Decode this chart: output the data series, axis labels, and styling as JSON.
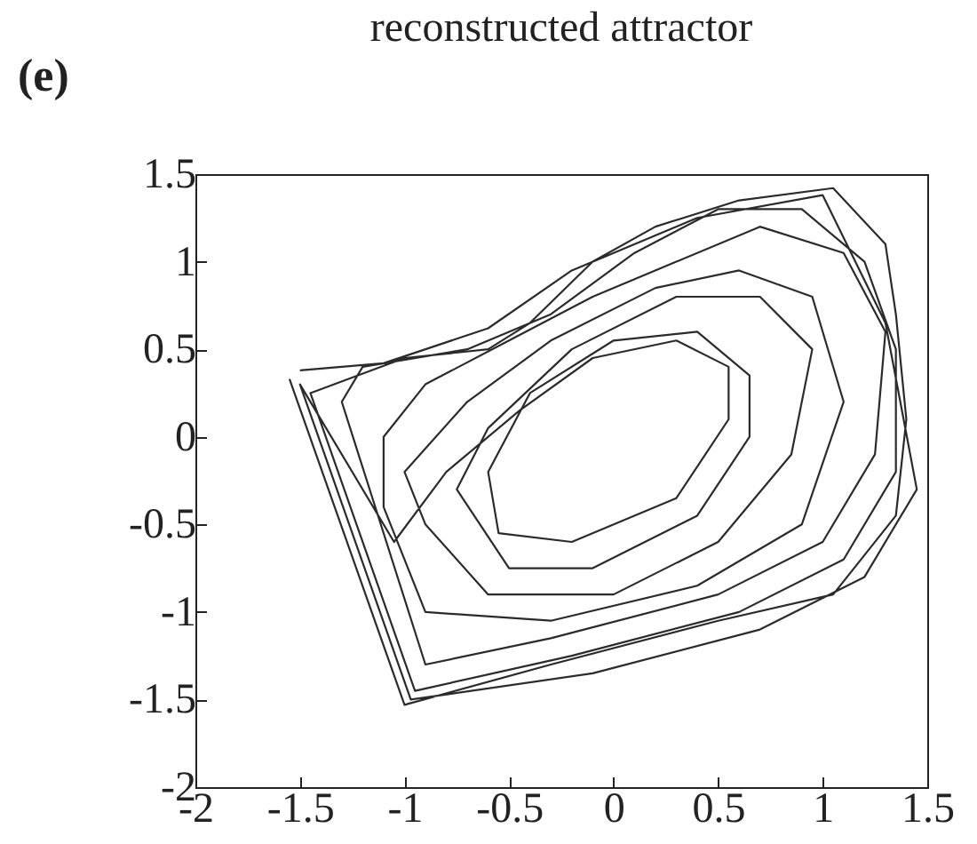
{
  "chart_data": {
    "type": "line",
    "title": "reconstructed attractor",
    "annotations": [
      "(e)"
    ],
    "xlim": [
      -2,
      1.5
    ],
    "ylim": [
      -2,
      1.5
    ],
    "xticks": [
      -2,
      -1.5,
      -1,
      -0.5,
      0,
      0.5,
      1,
      1.5
    ],
    "yticks": [
      -2,
      -1.5,
      -1,
      -0.5,
      0,
      0.5,
      1,
      1.5
    ],
    "series": [
      {
        "color": "#2b2b2b",
        "x": [
          -1.55,
          -1.0,
          -0.3,
          0.5,
          1.05,
          1.35,
          1.4,
          1.35,
          1.3,
          1.05,
          0.6,
          0.2,
          -0.1,
          -0.4,
          -0.6,
          -1.0,
          -1.45,
          -0.95,
          -0.2,
          0.6,
          1.1,
          1.35,
          1.35,
          1.2,
          0.9,
          0.5,
          0.1,
          -0.3,
          -0.7,
          -1.2,
          -1.3,
          -0.9,
          -0.3,
          0.5,
          1.0,
          1.25,
          1.3,
          1.1,
          0.7,
          0.3,
          -0.1,
          -0.5,
          -0.9,
          -1.1,
          -1.1,
          -0.9,
          -0.3,
          0.4,
          0.9,
          1.1,
          0.95,
          0.6,
          0.2,
          -0.3,
          -0.7,
          -1.0,
          -0.9,
          -0.6,
          0.0,
          0.5,
          0.85,
          0.95,
          0.7,
          0.3,
          -0.2,
          -0.6,
          -0.75,
          -0.5,
          -0.1,
          0.4,
          0.65,
          0.65,
          0.4,
          0.0,
          -0.4,
          -0.6,
          -0.55,
          -0.2,
          0.3,
          0.55,
          0.55,
          0.3,
          -0.1,
          -0.45,
          -0.8,
          -1.05,
          -1.5,
          -0.97,
          -0.1,
          0.7,
          1.2,
          1.45,
          1.3,
          1.0,
          0.4,
          -0.2,
          -0.6,
          -1.1,
          -1.5
        ],
        "values": [
          0.33,
          -1.53,
          -1.3,
          -1.05,
          -0.9,
          -0.45,
          0.1,
          0.7,
          1.1,
          1.42,
          1.35,
          1.2,
          1.0,
          0.65,
          0.5,
          0.45,
          0.25,
          -1.45,
          -1.25,
          -1.0,
          -0.7,
          -0.2,
          0.5,
          1.0,
          1.3,
          1.3,
          1.05,
          0.7,
          0.5,
          0.4,
          0.2,
          -1.3,
          -1.15,
          -0.9,
          -0.6,
          -0.1,
          0.6,
          1.05,
          1.2,
          1.0,
          0.8,
          0.55,
          0.3,
          0.0,
          -0.4,
          -1.0,
          -1.05,
          -0.85,
          -0.5,
          0.2,
          0.8,
          0.95,
          0.85,
          0.55,
          0.2,
          -0.2,
          -0.5,
          -0.9,
          -0.9,
          -0.6,
          -0.1,
          0.5,
          0.8,
          0.8,
          0.5,
          0.05,
          -0.3,
          -0.75,
          -0.75,
          -0.45,
          0.0,
          0.35,
          0.6,
          0.55,
          0.25,
          -0.2,
          -0.55,
          -0.6,
          -0.35,
          0.1,
          0.4,
          0.55,
          0.45,
          0.15,
          -0.2,
          -0.6,
          0.3,
          -1.5,
          -1.35,
          -1.1,
          -0.8,
          -0.3,
          0.65,
          1.38,
          1.25,
          0.95,
          0.62,
          0.42,
          0.38
        ]
      }
    ]
  }
}
